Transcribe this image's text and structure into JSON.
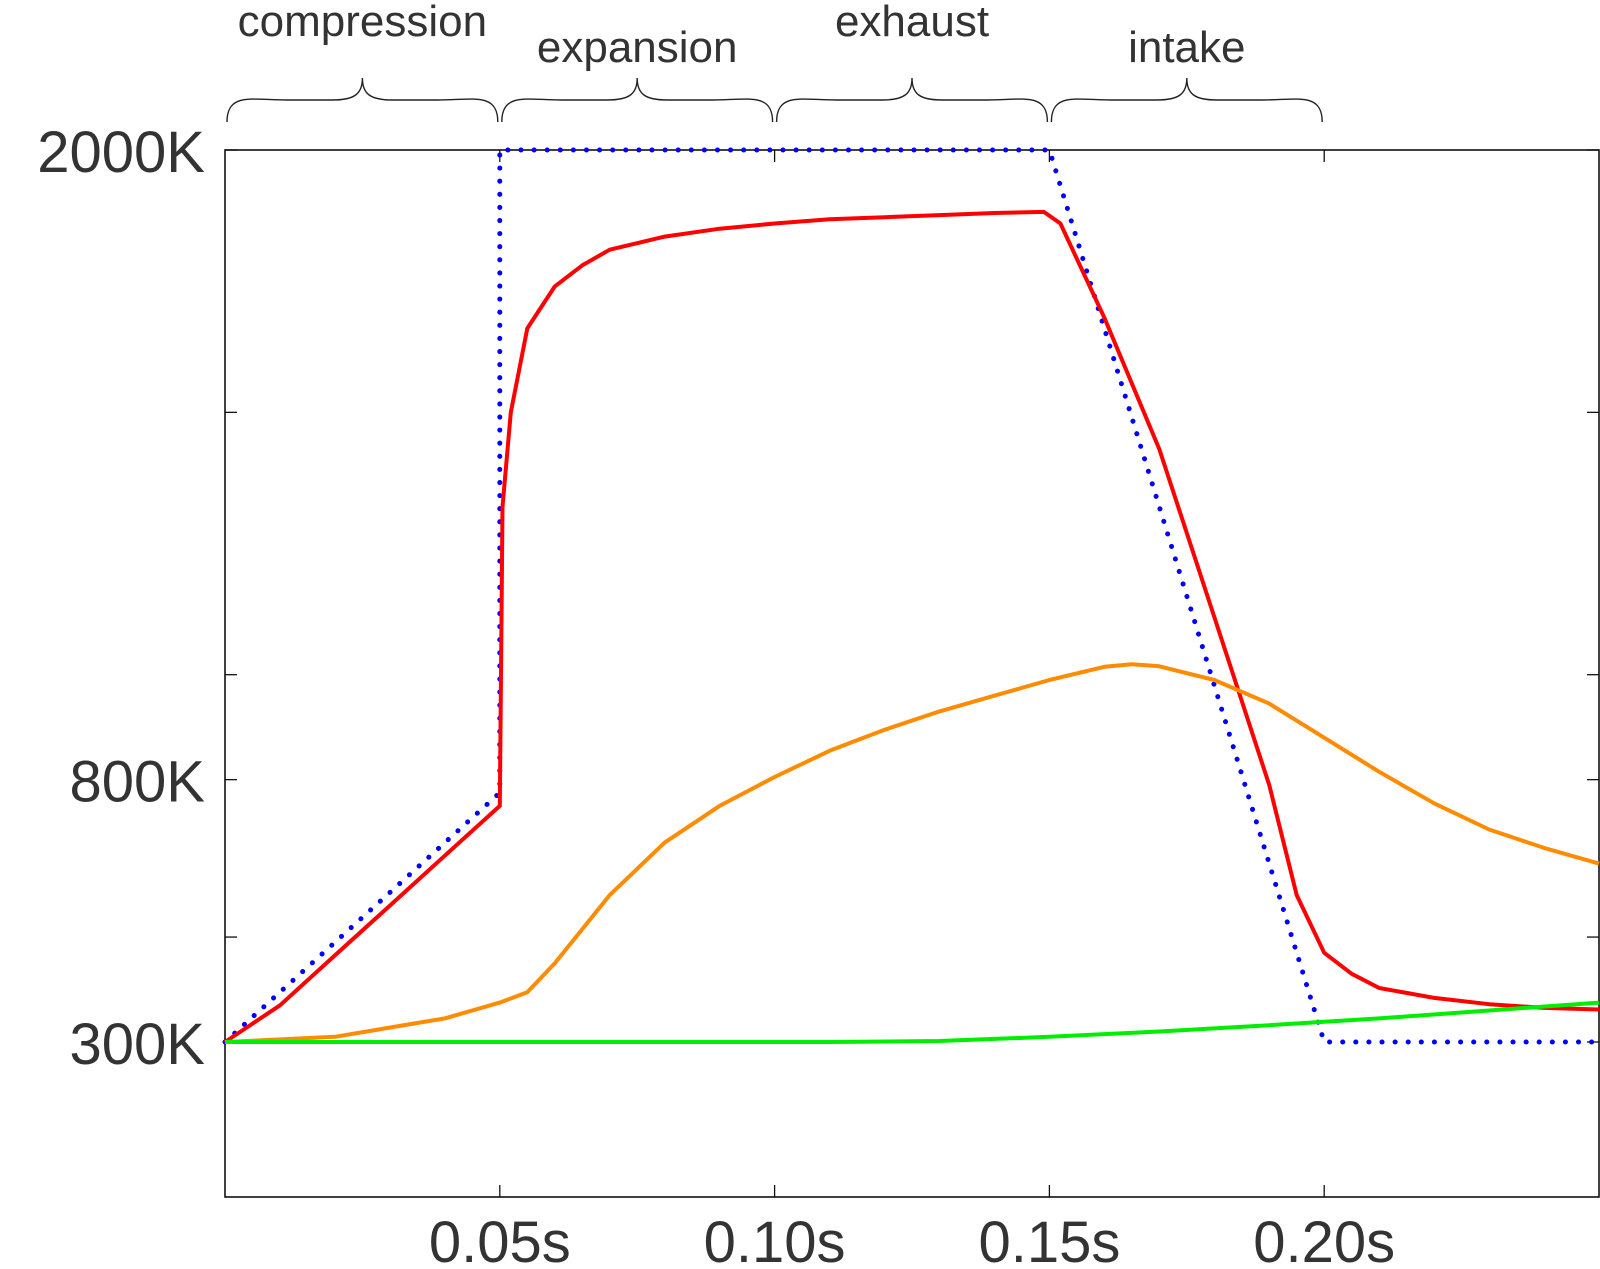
{
  "chart_data": {
    "type": "line",
    "x_unit": "s",
    "y_unit": "K",
    "xlim": [
      0,
      0.25
    ],
    "ylim": [
      300,
      2000
    ],
    "grid": false,
    "phases": [
      {
        "label": "compression",
        "start": 0.0,
        "end": 0.05
      },
      {
        "label": "expansion",
        "start": 0.05,
        "end": 0.1
      },
      {
        "label": "exhaust",
        "start": 0.1,
        "end": 0.15
      },
      {
        "label": "intake",
        "start": 0.15,
        "end": 0.2
      }
    ],
    "x_ticks": [
      {
        "value": 0.05,
        "label": "0.05s"
      },
      {
        "value": 0.1,
        "label": "0.10s"
      },
      {
        "value": 0.15,
        "label": "0.15s"
      },
      {
        "value": 0.2,
        "label": "0.20s"
      }
    ],
    "y_ticks": [
      {
        "value": 2000,
        "label": "2000K"
      },
      {
        "value": 800,
        "label": "800K"
      },
      {
        "value": 300,
        "label": "300K"
      }
    ],
    "y_minor_ticks": [
      1500,
      1000,
      500
    ],
    "series": [
      {
        "color": "#0000ff",
        "style": "dotted",
        "points": [
          [
            0.0,
            300
          ],
          [
            0.05,
            775
          ],
          [
            0.05,
            2000
          ],
          [
            0.15,
            2000
          ],
          [
            0.2,
            300
          ],
          [
            0.25,
            300
          ]
        ]
      },
      {
        "color": "#ff0000",
        "style": "solid",
        "points": [
          [
            0.0,
            300
          ],
          [
            0.01,
            370
          ],
          [
            0.02,
            465
          ],
          [
            0.03,
            560
          ],
          [
            0.04,
            655
          ],
          [
            0.05,
            750
          ],
          [
            0.0505,
            1320
          ],
          [
            0.052,
            1500
          ],
          [
            0.055,
            1660
          ],
          [
            0.06,
            1740
          ],
          [
            0.065,
            1780
          ],
          [
            0.07,
            1810
          ],
          [
            0.08,
            1835
          ],
          [
            0.09,
            1850
          ],
          [
            0.1,
            1860
          ],
          [
            0.11,
            1868
          ],
          [
            0.12,
            1872
          ],
          [
            0.13,
            1876
          ],
          [
            0.14,
            1880
          ],
          [
            0.149,
            1882
          ],
          [
            0.152,
            1860
          ],
          [
            0.16,
            1680
          ],
          [
            0.17,
            1430
          ],
          [
            0.18,
            1110
          ],
          [
            0.19,
            790
          ],
          [
            0.195,
            580
          ],
          [
            0.2,
            470
          ],
          [
            0.205,
            430
          ],
          [
            0.21,
            403
          ],
          [
            0.22,
            384
          ],
          [
            0.23,
            372
          ],
          [
            0.24,
            365
          ],
          [
            0.25,
            362
          ]
        ]
      },
      {
        "color": "#ff8c00",
        "style": "solid",
        "points": [
          [
            0.0,
            300
          ],
          [
            0.02,
            310
          ],
          [
            0.04,
            345
          ],
          [
            0.05,
            375
          ],
          [
            0.055,
            395
          ],
          [
            0.06,
            450
          ],
          [
            0.07,
            580
          ],
          [
            0.08,
            680
          ],
          [
            0.09,
            750
          ],
          [
            0.1,
            805
          ],
          [
            0.11,
            855
          ],
          [
            0.12,
            895
          ],
          [
            0.13,
            930
          ],
          [
            0.14,
            960
          ],
          [
            0.15,
            990
          ],
          [
            0.16,
            1015
          ],
          [
            0.165,
            1020
          ],
          [
            0.17,
            1016
          ],
          [
            0.18,
            990
          ],
          [
            0.19,
            945
          ],
          [
            0.2,
            880
          ],
          [
            0.21,
            815
          ],
          [
            0.22,
            755
          ],
          [
            0.23,
            705
          ],
          [
            0.24,
            670
          ],
          [
            0.25,
            640
          ]
        ]
      },
      {
        "color": "#00ee00",
        "style": "solid",
        "points": [
          [
            0.0,
            300
          ],
          [
            0.11,
            300
          ],
          [
            0.13,
            302
          ],
          [
            0.15,
            310
          ],
          [
            0.17,
            320
          ],
          [
            0.19,
            332
          ],
          [
            0.21,
            345
          ],
          [
            0.23,
            360
          ],
          [
            0.25,
            375
          ]
        ]
      }
    ]
  }
}
